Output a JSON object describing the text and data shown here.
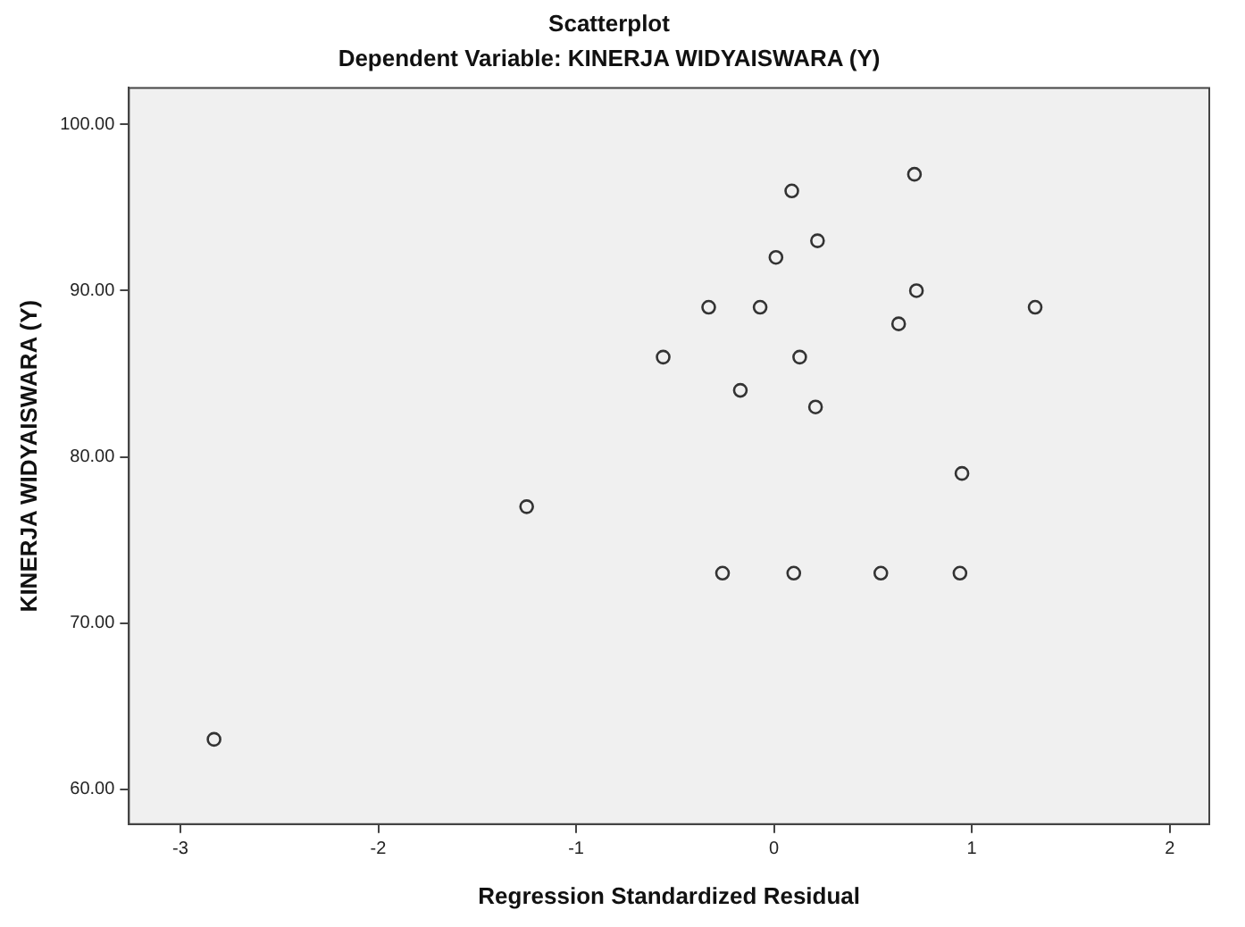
{
  "chart_data": {
    "type": "scatter",
    "title": "Scatterplot",
    "subtitle": "Dependent Variable: KINERJA WIDYAISWARA (Y)",
    "xlabel": "Regression Standardized Residual",
    "ylabel": "KINERJA WIDYAISWARA (Y)",
    "x": [
      -2.83,
      -1.25,
      -0.56,
      -0.33,
      -0.26,
      -0.17,
      -0.07,
      0.01,
      0.09,
      0.1,
      0.13,
      0.21,
      0.22,
      0.54,
      0.63,
      0.71,
      0.72,
      0.94,
      0.95,
      1.32
    ],
    "series": [
      {
        "color": "#333333",
        "values": [
          63,
          77,
          86,
          89,
          73,
          84,
          89,
          92,
          96,
          73,
          86,
          83,
          93,
          73,
          88,
          97,
          90,
          73,
          79,
          89
        ]
      }
    ],
    "marker": "circle",
    "xlim": [
      -3.26,
      2.2
    ],
    "xticks": [
      -3,
      -2,
      -1,
      0,
      1,
      2
    ],
    "ylim": [
      57.9,
      102.2
    ],
    "yticks": [
      {
        "value": 60,
        "label": "60.00"
      },
      {
        "value": 70,
        "label": "70.00"
      },
      {
        "value": 80,
        "label": "80.00"
      },
      {
        "value": 90,
        "label": "90.00"
      },
      {
        "value": 100,
        "label": "100.00"
      }
    ],
    "legend": false
  }
}
